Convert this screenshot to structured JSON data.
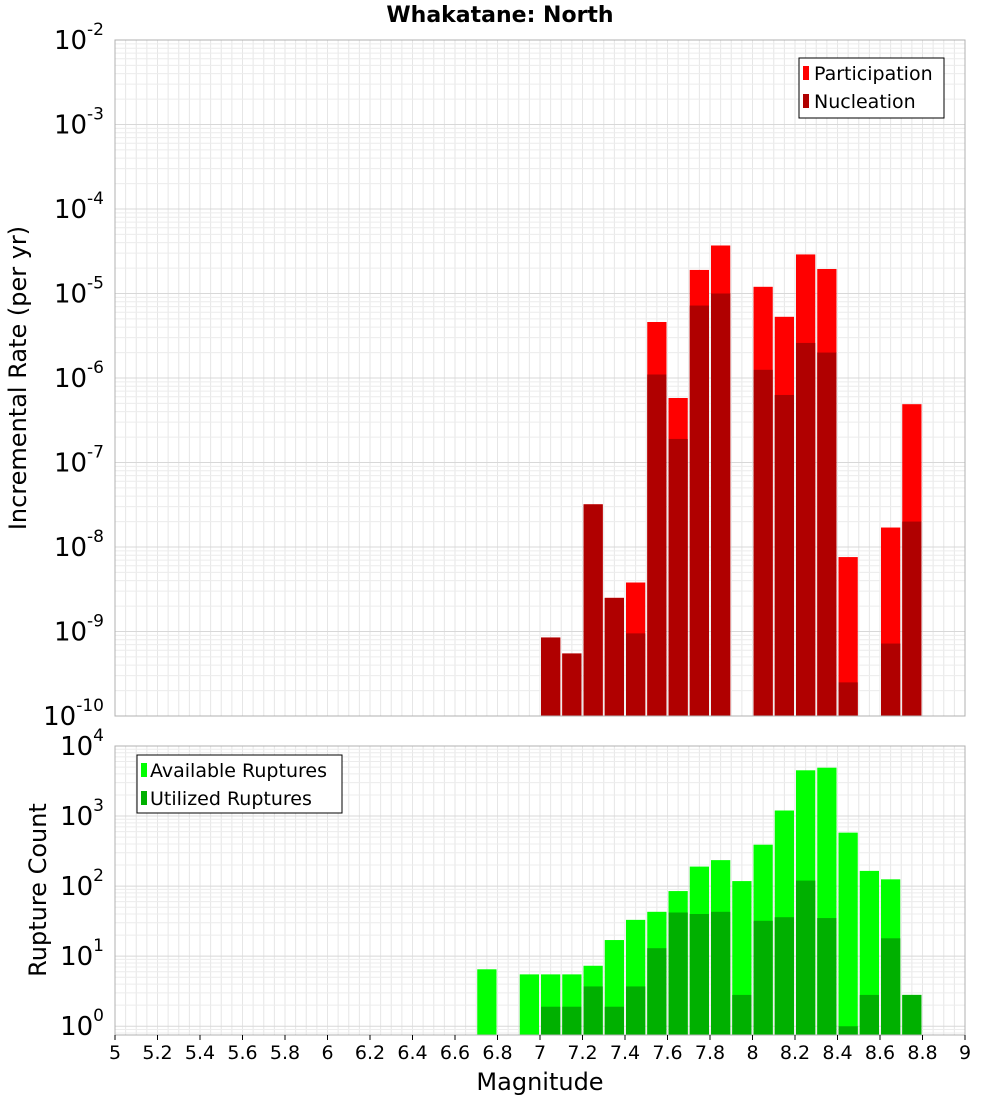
{
  "chart_data": [
    {
      "type": "bar",
      "title": "Whakatane: North",
      "xlabel": "Magnitude",
      "ylabel": "Incremental Rate (per yr)",
      "xlim": [
        5,
        9
      ],
      "ylim": [
        1e-10,
        0.01
      ],
      "yscale": "log",
      "ytick_exponents": [
        "-10",
        "-9",
        "-8",
        "-7",
        "-6",
        "-5",
        "-4",
        "-3",
        "-2"
      ],
      "grid": true,
      "legend_position": "top-right",
      "bar_width": 0.1,
      "series": [
        {
          "name": "Participation",
          "color": "#ff0000",
          "points": [
            {
              "x": 7.0,
              "y": 8.5e-10
            },
            {
              "x": 7.1,
              "y": 5.5e-10
            },
            {
              "x": 7.2,
              "y": 3.2e-08
            },
            {
              "x": 7.3,
              "y": 2.5e-09
            },
            {
              "x": 7.4,
              "y": 3.8e-09
            },
            {
              "x": 7.5,
              "y": 4.6e-06
            },
            {
              "x": 7.6,
              "y": 5.8e-07
            },
            {
              "x": 7.7,
              "y": 1.9e-05
            },
            {
              "x": 7.8,
              "y": 3.7e-05
            },
            {
              "x": 8.0,
              "y": 1.2e-05
            },
            {
              "x": 8.1,
              "y": 5.3e-06
            },
            {
              "x": 8.2,
              "y": 2.9e-05
            },
            {
              "x": 8.3,
              "y": 1.95e-05
            },
            {
              "x": 8.4,
              "y": 7.6e-09
            },
            {
              "x": 8.6,
              "y": 1.7e-08
            },
            {
              "x": 8.7,
              "y": 4.9e-07
            }
          ]
        },
        {
          "name": "Nucleation",
          "color": "#b00000",
          "points": [
            {
              "x": 7.0,
              "y": 8.5e-10
            },
            {
              "x": 7.1,
              "y": 5.5e-10
            },
            {
              "x": 7.2,
              "y": 3.2e-08
            },
            {
              "x": 7.3,
              "y": 2.5e-09
            },
            {
              "x": 7.4,
              "y": 9.5e-10
            },
            {
              "x": 7.5,
              "y": 1.1e-06
            },
            {
              "x": 7.6,
              "y": 1.9e-07
            },
            {
              "x": 7.7,
              "y": 7.2e-06
            },
            {
              "x": 7.8,
              "y": 1e-05
            },
            {
              "x": 8.0,
              "y": 1.25e-06
            },
            {
              "x": 8.1,
              "y": 6.3e-07
            },
            {
              "x": 8.2,
              "y": 2.6e-06
            },
            {
              "x": 8.3,
              "y": 2e-06
            },
            {
              "x": 8.4,
              "y": 2.5e-10
            },
            {
              "x": 8.6,
              "y": 7.2e-10
            },
            {
              "x": 8.7,
              "y": 2e-08
            }
          ]
        }
      ]
    },
    {
      "type": "bar",
      "title": "",
      "xlabel": "Magnitude",
      "ylabel": "Rupture Count",
      "xlim": [
        5,
        9
      ],
      "ylim": [
        0.75,
        10000
      ],
      "yscale": "log",
      "ytick_exponents": [
        "0",
        "1",
        "2",
        "3",
        "4"
      ],
      "xticks": [
        "5",
        "5.2",
        "5.4",
        "5.6",
        "5.8",
        "6",
        "6.2",
        "6.4",
        "6.6",
        "6.8",
        "7",
        "7.2",
        "7.4",
        "7.6",
        "7.8",
        "8",
        "8.2",
        "8.4",
        "8.6",
        "8.8",
        "9"
      ],
      "grid": true,
      "legend_position": "top-left",
      "bar_width": 0.1,
      "series": [
        {
          "name": "Available Ruptures",
          "color": "#00ff00",
          "points": [
            {
              "x": 6.7,
              "y": 6.5
            },
            {
              "x": 6.9,
              "y": 5.5
            },
            {
              "x": 7.0,
              "y": 5.5
            },
            {
              "x": 7.1,
              "y": 5.5
            },
            {
              "x": 7.2,
              "y": 7.3
            },
            {
              "x": 7.3,
              "y": 17
            },
            {
              "x": 7.4,
              "y": 33
            },
            {
              "x": 7.5,
              "y": 43
            },
            {
              "x": 7.6,
              "y": 85
            },
            {
              "x": 7.7,
              "y": 190
            },
            {
              "x": 7.8,
              "y": 235
            },
            {
              "x": 7.9,
              "y": 118
            },
            {
              "x": 8.0,
              "y": 390
            },
            {
              "x": 8.1,
              "y": 1200
            },
            {
              "x": 8.2,
              "y": 4500
            },
            {
              "x": 8.3,
              "y": 4900
            },
            {
              "x": 8.4,
              "y": 580
            },
            {
              "x": 8.5,
              "y": 165
            },
            {
              "x": 8.6,
              "y": 125
            },
            {
              "x": 8.7,
              "y": 2.8
            }
          ]
        },
        {
          "name": "Utilized Ruptures",
          "color": "#00b000",
          "points": [
            {
              "x": 7.0,
              "y": 1.9
            },
            {
              "x": 7.1,
              "y": 1.9
            },
            {
              "x": 7.2,
              "y": 3.7
            },
            {
              "x": 7.3,
              "y": 1.9
            },
            {
              "x": 7.4,
              "y": 3.7
            },
            {
              "x": 7.5,
              "y": 13
            },
            {
              "x": 7.6,
              "y": 42
            },
            {
              "x": 7.7,
              "y": 40
            },
            {
              "x": 7.8,
              "y": 43
            },
            {
              "x": 7.9,
              "y": 2.8
            },
            {
              "x": 8.0,
              "y": 32
            },
            {
              "x": 8.1,
              "y": 36
            },
            {
              "x": 8.2,
              "y": 120
            },
            {
              "x": 8.3,
              "y": 35
            },
            {
              "x": 8.4,
              "y": 1.0
            },
            {
              "x": 8.5,
              "y": 2.8
            },
            {
              "x": 8.6,
              "y": 18
            },
            {
              "x": 8.7,
              "y": 2.8
            }
          ]
        }
      ]
    }
  ]
}
